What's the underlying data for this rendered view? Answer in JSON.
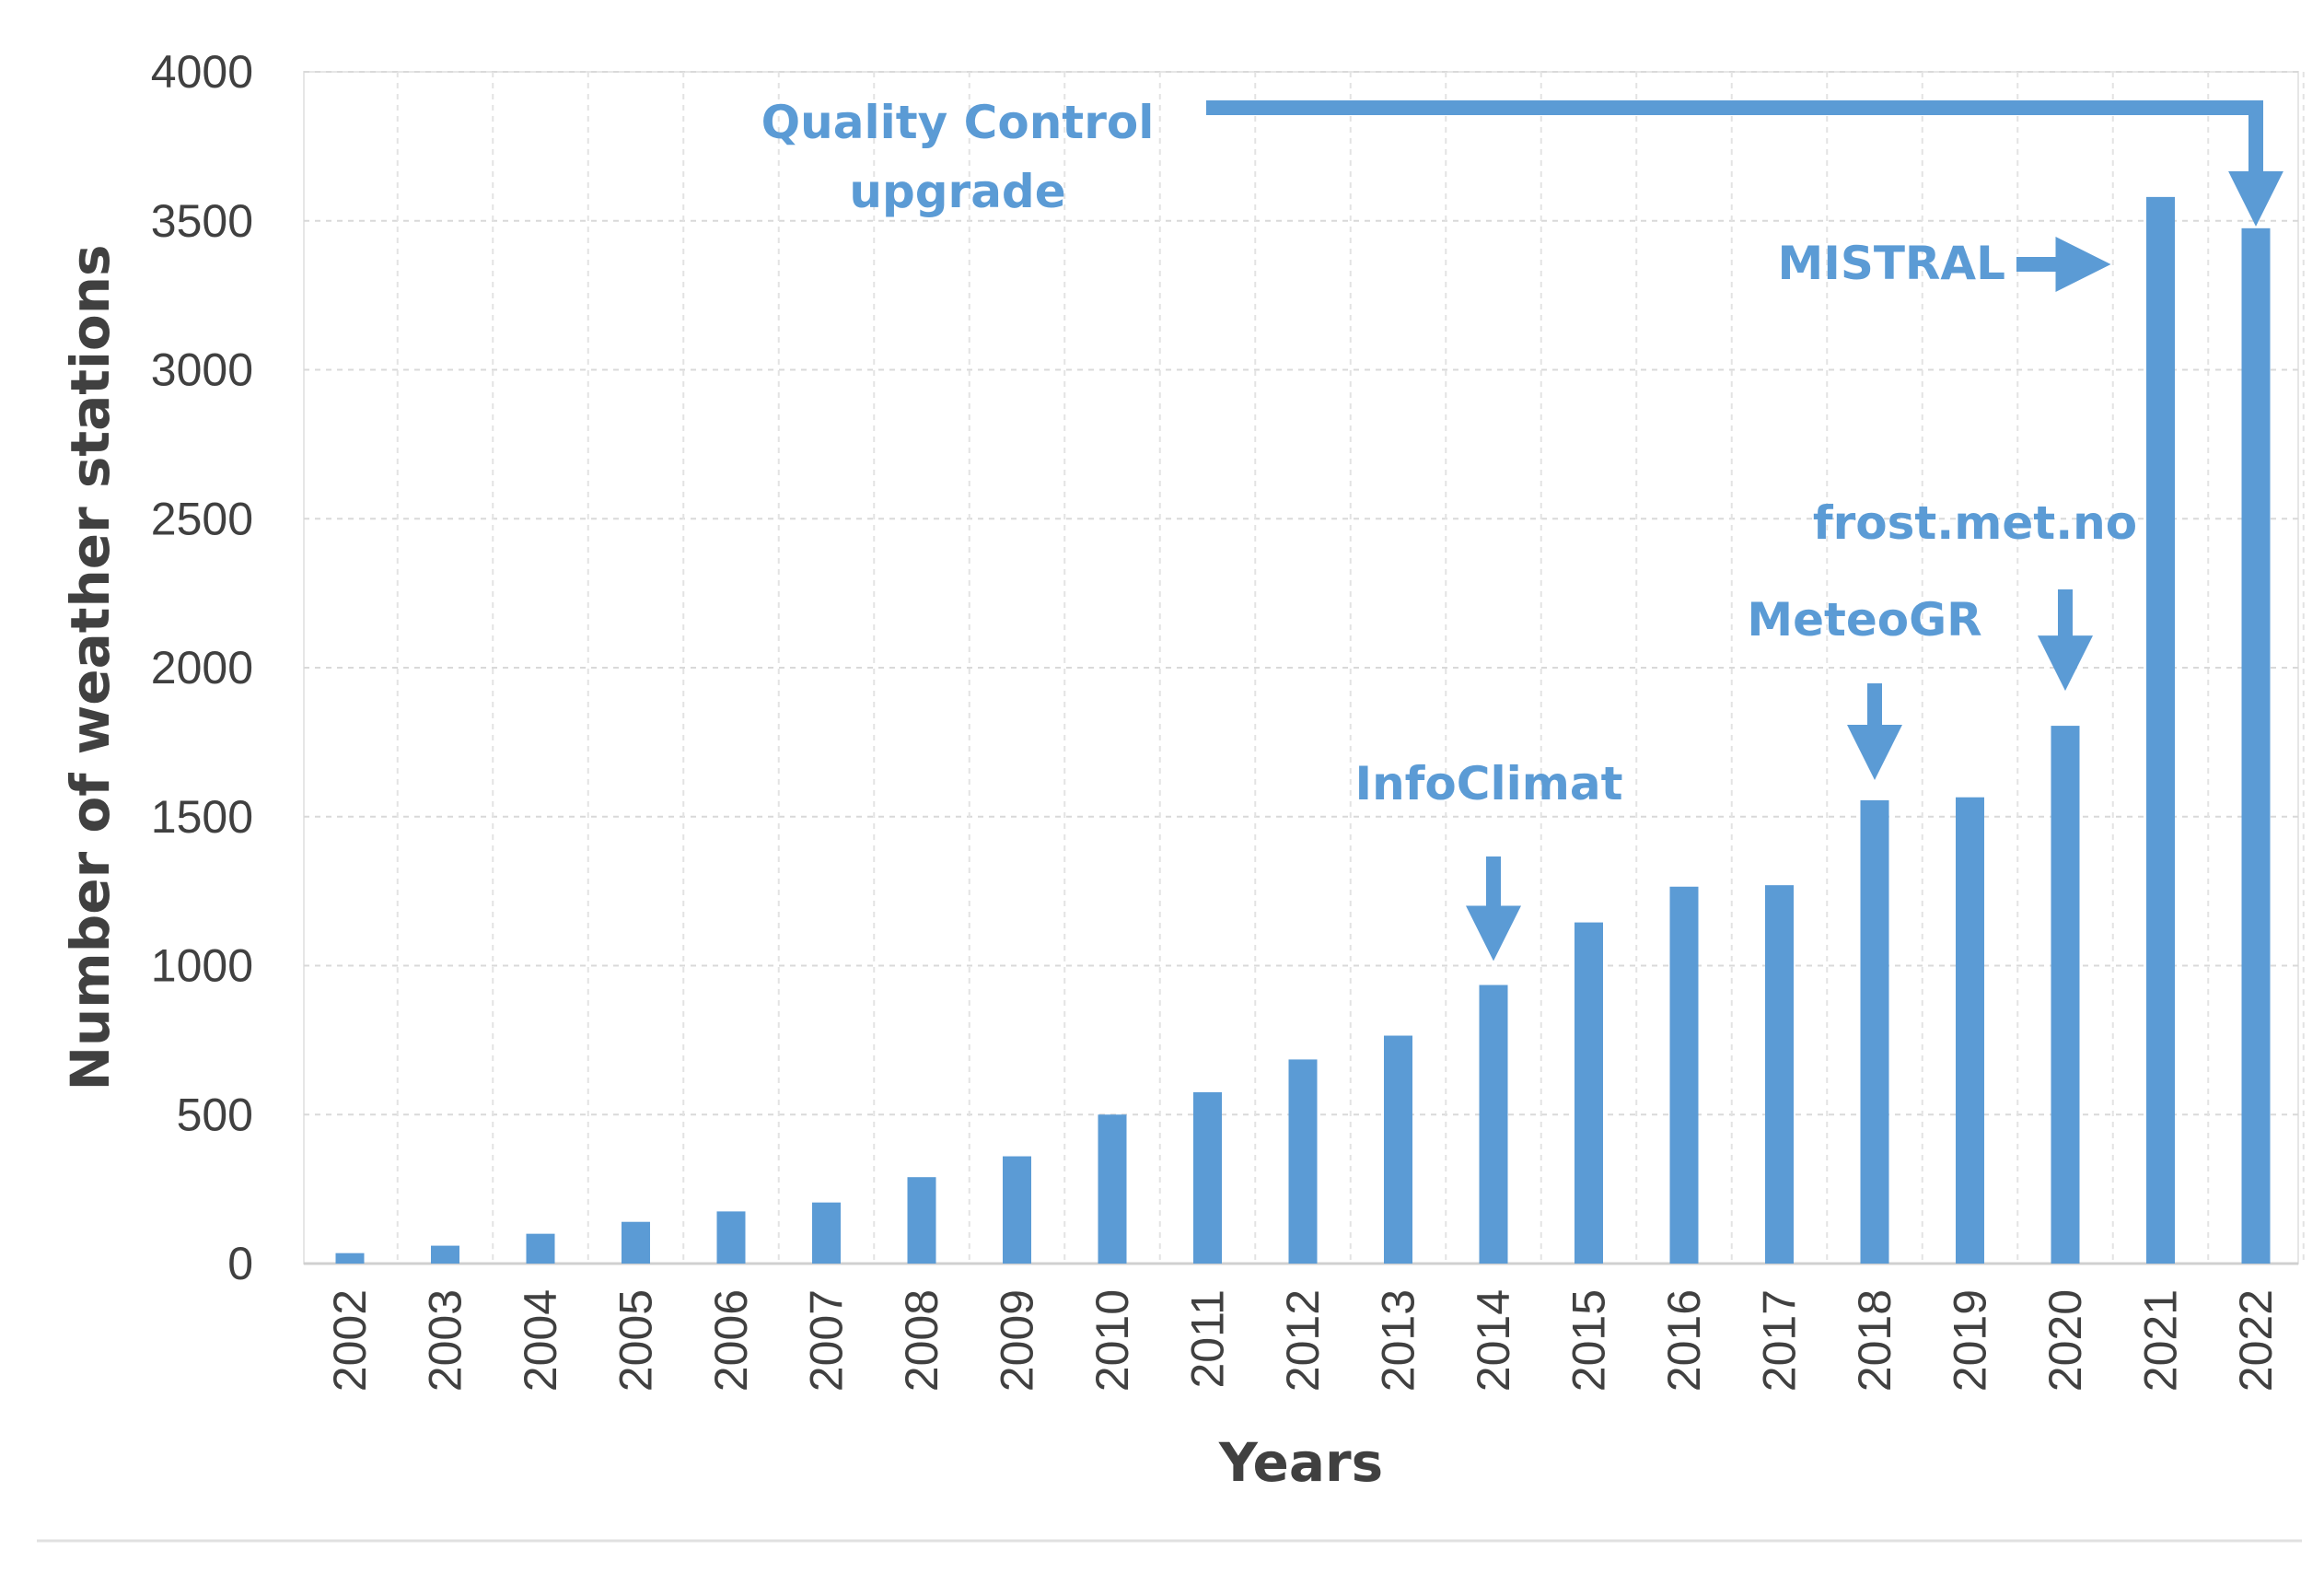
{
  "chart_data": {
    "type": "bar",
    "title": "",
    "xlabel": "Years",
    "ylabel": "Number of weather stations",
    "ylim": [
      0,
      4000
    ],
    "yticks": [
      0,
      500,
      1000,
      1500,
      2000,
      2500,
      3000,
      3500,
      4000
    ],
    "grid": true,
    "categories": [
      "2002",
      "2003",
      "2004",
      "2005",
      "2006",
      "2007",
      "2008",
      "2009",
      "2010",
      "2011",
      "2012",
      "2013",
      "2014",
      "2015",
      "2016",
      "2017",
      "2018",
      "2019",
      "2020",
      "2021",
      "2022"
    ],
    "values": [
      35,
      60,
      100,
      140,
      175,
      205,
      290,
      360,
      500,
      575,
      685,
      765,
      935,
      1145,
      1265,
      1270,
      1555,
      1565,
      1805,
      3580,
      3475
    ],
    "bar_color": "#5b9bd5",
    "annotations": [
      {
        "text_lines": [
          "Quality Control",
          "upgrade"
        ],
        "target": "2022"
      },
      {
        "text_lines": [
          "MISTRAL"
        ],
        "target": "2021"
      },
      {
        "text_lines": [
          "frost.met.no"
        ],
        "target": "2020"
      },
      {
        "text_lines": [
          "MeteoGR"
        ],
        "target": "2018"
      },
      {
        "text_lines": [
          "InfoClimat"
        ],
        "target": "2014"
      }
    ]
  }
}
